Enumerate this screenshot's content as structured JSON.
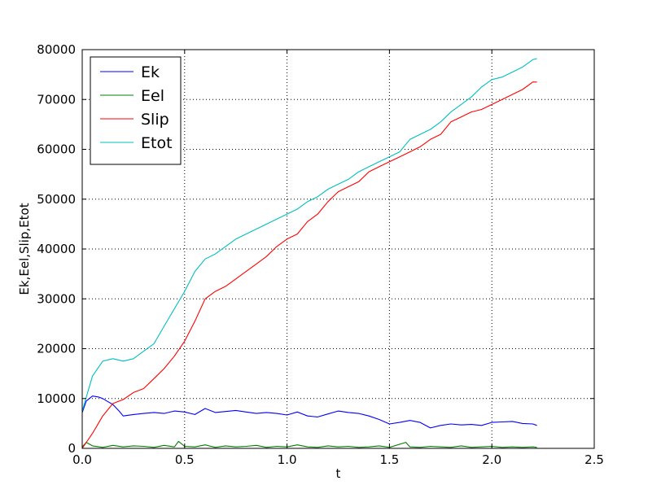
{
  "chart_data": {
    "type": "line",
    "xlabel": "t",
    "ylabel": "Ek,Eel,Slip,Etot",
    "xlim": [
      0.0,
      2.5
    ],
    "ylim": [
      0,
      80000
    ],
    "x_ticks": [
      "0.0",
      "0.5",
      "1.0",
      "1.5",
      "2.0",
      "2.5"
    ],
    "y_ticks": [
      "0",
      "10000",
      "20000",
      "30000",
      "40000",
      "50000",
      "60000",
      "70000",
      "80000"
    ],
    "grid": true,
    "legend_position": "top-left",
    "series": [
      {
        "name": "Ek",
        "color": "#0000ff",
        "x": [
          0.0,
          0.02,
          0.05,
          0.08,
          0.1,
          0.12,
          0.15,
          0.18,
          0.2,
          0.25,
          0.3,
          0.35,
          0.4,
          0.45,
          0.5,
          0.55,
          0.6,
          0.65,
          0.7,
          0.75,
          0.8,
          0.85,
          0.9,
          0.95,
          1.0,
          1.05,
          1.1,
          1.15,
          1.2,
          1.25,
          1.3,
          1.35,
          1.4,
          1.45,
          1.5,
          1.55,
          1.6,
          1.65,
          1.7,
          1.75,
          1.8,
          1.85,
          1.9,
          1.95,
          2.0,
          2.05,
          2.1,
          2.15,
          2.2,
          2.22
        ],
        "y": [
          7200,
          9500,
          10500,
          10300,
          10000,
          9500,
          8800,
          7500,
          6500,
          6800,
          7000,
          7200,
          7000,
          7500,
          7300,
          6800,
          8000,
          7200,
          7400,
          7600,
          7300,
          7000,
          7200,
          7000,
          6700,
          7300,
          6500,
          6300,
          6900,
          7500,
          7200,
          7000,
          6500,
          5800,
          4900,
          5200,
          5600,
          5200,
          4100,
          4600,
          4900,
          4700,
          4800,
          4600,
          5200,
          5300,
          5400,
          5000,
          4900,
          4600
        ]
      },
      {
        "name": "Eel",
        "color": "#008000",
        "x": [
          0.0,
          0.02,
          0.05,
          0.1,
          0.15,
          0.2,
          0.25,
          0.3,
          0.35,
          0.4,
          0.45,
          0.47,
          0.5,
          0.55,
          0.6,
          0.65,
          0.7,
          0.75,
          0.8,
          0.85,
          0.9,
          0.95,
          1.0,
          1.05,
          1.1,
          1.15,
          1.2,
          1.25,
          1.3,
          1.35,
          1.4,
          1.45,
          1.5,
          1.58,
          1.6,
          1.65,
          1.7,
          1.75,
          1.8,
          1.85,
          1.9,
          1.95,
          2.0,
          2.05,
          2.1,
          2.15,
          2.2,
          2.22
        ],
        "y": [
          300,
          1200,
          500,
          200,
          600,
          300,
          500,
          400,
          200,
          600,
          300,
          1400,
          400,
          300,
          700,
          200,
          500,
          300,
          400,
          600,
          200,
          400,
          300,
          700,
          300,
          200,
          500,
          300,
          400,
          200,
          300,
          500,
          200,
          1200,
          300,
          200,
          400,
          300,
          200,
          500,
          200,
          300,
          400,
          200,
          300,
          200,
          300,
          200
        ]
      },
      {
        "name": "Slip",
        "color": "#ff0000",
        "x": [
          0.0,
          0.05,
          0.1,
          0.15,
          0.2,
          0.25,
          0.3,
          0.35,
          0.4,
          0.45,
          0.5,
          0.55,
          0.6,
          0.65,
          0.7,
          0.75,
          0.8,
          0.85,
          0.9,
          0.95,
          1.0,
          1.05,
          1.1,
          1.15,
          1.2,
          1.25,
          1.3,
          1.35,
          1.4,
          1.45,
          1.5,
          1.55,
          1.6,
          1.65,
          1.7,
          1.75,
          1.8,
          1.85,
          1.9,
          1.95,
          2.0,
          2.05,
          2.1,
          2.15,
          2.2,
          2.22
        ],
        "y": [
          0,
          3000,
          6500,
          9000,
          9800,
          11200,
          12000,
          14000,
          16000,
          18500,
          21500,
          25500,
          30000,
          31500,
          32500,
          34000,
          35500,
          37000,
          38500,
          40500,
          42000,
          43000,
          45500,
          47000,
          49500,
          51500,
          52500,
          53500,
          55500,
          56500,
          57500,
          58500,
          59500,
          60500,
          62000,
          63000,
          65500,
          66500,
          67500,
          68000,
          69000,
          70000,
          71000,
          72000,
          73500,
          73500
        ]
      },
      {
        "name": "Etot",
        "color": "#00bfbf",
        "x": [
          0.0,
          0.05,
          0.1,
          0.15,
          0.2,
          0.25,
          0.3,
          0.35,
          0.4,
          0.45,
          0.5,
          0.55,
          0.6,
          0.65,
          0.7,
          0.75,
          0.8,
          0.85,
          0.9,
          0.95,
          1.0,
          1.05,
          1.1,
          1.15,
          1.2,
          1.25,
          1.3,
          1.35,
          1.4,
          1.45,
          1.5,
          1.55,
          1.6,
          1.65,
          1.7,
          1.75,
          1.8,
          1.85,
          1.9,
          1.95,
          2.0,
          2.05,
          2.1,
          2.15,
          2.2,
          2.22
        ],
        "y": [
          7500,
          14500,
          17500,
          18000,
          17500,
          18000,
          19500,
          21000,
          24500,
          28000,
          31500,
          35500,
          38000,
          39000,
          40500,
          42000,
          43000,
          44000,
          45000,
          46000,
          47000,
          48000,
          49500,
          50500,
          52000,
          53000,
          54000,
          55500,
          56500,
          57500,
          58500,
          59500,
          62000,
          63000,
          64000,
          65500,
          67500,
          69000,
          70500,
          72500,
          74000,
          74500,
          75500,
          76500,
          78000,
          78200
        ]
      }
    ]
  }
}
